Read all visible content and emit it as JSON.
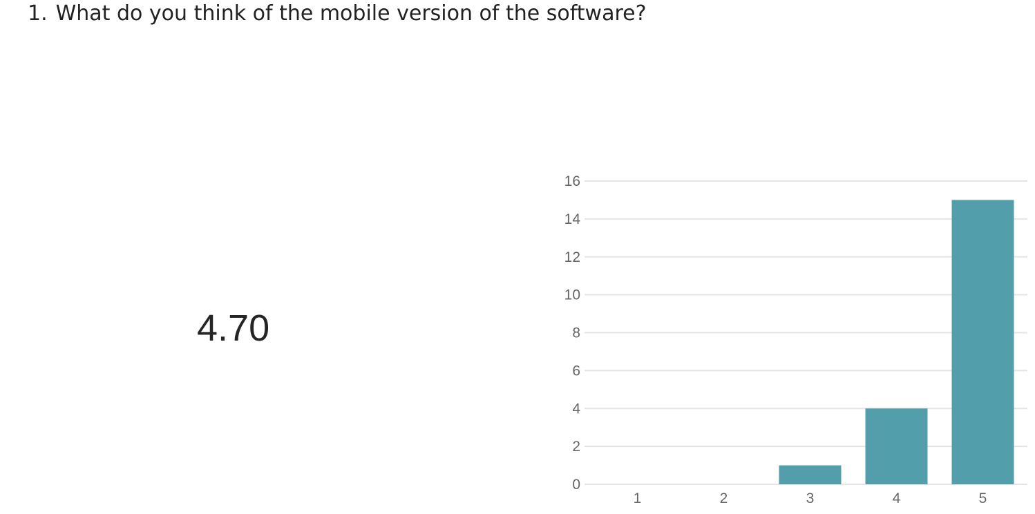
{
  "question": {
    "number": "1.",
    "text": "What do you think of the mobile version of the software?"
  },
  "average_score": "4.70",
  "colors": {
    "bar": "#539EAB",
    "grid": "#E5E5E5",
    "axis_text": "#666666"
  },
  "chart_data": {
    "type": "bar",
    "categories": [
      "1",
      "2",
      "3",
      "4",
      "5"
    ],
    "values": [
      0,
      0,
      1,
      4,
      15
    ],
    "title": "",
    "xlabel": "",
    "ylabel": "",
    "ylim": [
      0,
      16
    ],
    "yticks": [
      0,
      2,
      4,
      6,
      8,
      10,
      12,
      14,
      16
    ],
    "grid": true,
    "legend": "none"
  }
}
